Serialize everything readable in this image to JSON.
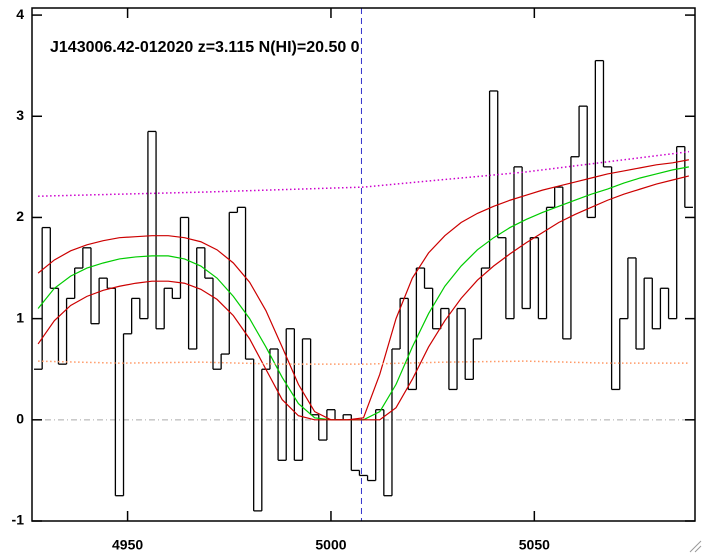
{
  "chart_data": {
    "type": "spectrum",
    "title": "J143006.42-012020 z=3.115 N(HI)=20.50 0",
    "xlim": [
      4926.5,
      5089.5
    ],
    "ylim": [
      -1,
      4.07
    ],
    "xticks": [
      4950,
      5000,
      5050
    ],
    "yticks": [
      -1,
      0,
      1,
      2,
      3,
      4
    ],
    "zero_line": 0,
    "vline": 5007.5,
    "series": [
      {
        "style": "step",
        "color": "#000000",
        "x": [
          4928,
          4930,
          4932,
          4934,
          4936,
          4938,
          4940,
          4942,
          4944,
          4946,
          4948,
          4950,
          4952,
          4954,
          4956,
          4958,
          4960,
          4962,
          4964,
          4966,
          4968,
          4970,
          4972,
          4974,
          4976,
          4978,
          4980,
          4982,
          4984,
          4986,
          4988,
          4990,
          4992,
          4994,
          4996,
          4998,
          5000,
          5002,
          5004,
          5006,
          5008,
          5010,
          5012,
          5014,
          5016,
          5018,
          5020,
          5022,
          5024,
          5026,
          5028,
          5030,
          5032,
          5034,
          5036,
          5038,
          5040,
          5042,
          5044,
          5046,
          5048,
          5050,
          5052,
          5054,
          5056,
          5058,
          5060,
          5062,
          5064,
          5066,
          5068,
          5070,
          5072,
          5074,
          5076,
          5078,
          5080,
          5082,
          5084,
          5086,
          5088
        ],
        "values": [
          0.5,
          1.9,
          1.3,
          0.55,
          1.2,
          1.5,
          1.7,
          0.95,
          1.4,
          1.3,
          -0.75,
          0.85,
          1.2,
          1.0,
          2.85,
          0.9,
          1.3,
          1.2,
          2.0,
          0.7,
          1.7,
          1.4,
          0.5,
          0.65,
          2.05,
          2.1,
          0.6,
          -0.9,
          0.5,
          0.7,
          -0.4,
          0.9,
          -0.4,
          0.8,
          0.05,
          -0.2,
          0.1,
          0,
          0.05,
          -0.5,
          -0.55,
          -0.6,
          0.1,
          -0.75,
          0.7,
          1.2,
          0.3,
          1.5,
          1.3,
          0.9,
          1.1,
          0.3,
          1.1,
          0.4,
          0.8,
          1.5,
          3.25,
          1.8,
          1.0,
          2.5,
          1.1,
          1.8,
          1.0,
          2.1,
          2.3,
          0.8,
          2.6,
          3.1,
          2.0,
          3.55,
          2.5,
          0.3,
          1.0,
          1.6,
          0.7,
          1.4,
          0.9,
          1.3,
          1.0,
          2.7,
          2.1
        ]
      },
      {
        "style": "solid",
        "color": "#00cc00",
        "x": [
          4928,
          4932,
          4936,
          4940,
          4944,
          4948,
          4952,
          4956,
          4960,
          4964,
          4968,
          4972,
          4976,
          4980,
          4984,
          4988,
          4992,
          4996,
          5000,
          5004,
          5008,
          5012,
          5016,
          5020,
          5024,
          5028,
          5032,
          5036,
          5040,
          5044,
          5048,
          5052,
          5056,
          5060,
          5064,
          5068,
          5072,
          5076,
          5080,
          5084,
          5088
        ],
        "values": [
          1.1,
          1.3,
          1.42,
          1.5,
          1.55,
          1.59,
          1.61,
          1.62,
          1.62,
          1.59,
          1.52,
          1.4,
          1.22,
          1.0,
          0.72,
          0.42,
          0.16,
          0.02,
          0,
          0,
          0,
          0.08,
          0.35,
          0.72,
          1.05,
          1.32,
          1.52,
          1.68,
          1.8,
          1.9,
          1.98,
          2.05,
          2.11,
          2.17,
          2.23,
          2.28,
          2.34,
          2.39,
          2.43,
          2.47,
          2.5
        ]
      },
      {
        "style": "solid",
        "color": "#cc0000",
        "x": [
          4928,
          4932,
          4936,
          4940,
          4944,
          4948,
          4952,
          4956,
          4960,
          4964,
          4968,
          4972,
          4976,
          4980,
          4984,
          4988,
          4992,
          4996,
          5000,
          5004,
          5008,
          5012,
          5016,
          5020,
          5024,
          5028,
          5032,
          5036,
          5040,
          5044,
          5048,
          5052,
          5056,
          5060,
          5064,
          5068,
          5072,
          5076,
          5080,
          5084,
          5088
        ],
        "values": [
          1.45,
          1.58,
          1.67,
          1.73,
          1.77,
          1.8,
          1.81,
          1.82,
          1.82,
          1.8,
          1.76,
          1.68,
          1.55,
          1.36,
          1.08,
          0.72,
          0.35,
          0.08,
          0,
          0,
          0.02,
          0.45,
          1.0,
          1.4,
          1.65,
          1.82,
          1.95,
          2.04,
          2.11,
          2.17,
          2.22,
          2.27,
          2.31,
          2.35,
          2.39,
          2.43,
          2.46,
          2.49,
          2.52,
          2.54,
          2.57
        ]
      },
      {
        "style": "solid",
        "color": "#cc0000",
        "x": [
          4928,
          4932,
          4936,
          4940,
          4944,
          4948,
          4952,
          4956,
          4960,
          4964,
          4968,
          4972,
          4976,
          4980,
          4984,
          4988,
          4992,
          4996,
          5000,
          5004,
          5008,
          5012,
          5016,
          5020,
          5024,
          5028,
          5032,
          5036,
          5040,
          5044,
          5048,
          5052,
          5056,
          5060,
          5064,
          5068,
          5072,
          5076,
          5080,
          5084,
          5088
        ],
        "values": [
          0.75,
          0.98,
          1.13,
          1.22,
          1.28,
          1.32,
          1.35,
          1.37,
          1.37,
          1.35,
          1.29,
          1.19,
          1.03,
          0.8,
          0.5,
          0.2,
          0.04,
          0,
          0,
          0,
          0,
          0,
          0.12,
          0.4,
          0.72,
          0.98,
          1.2,
          1.38,
          1.52,
          1.64,
          1.75,
          1.85,
          1.95,
          2.03,
          2.1,
          2.17,
          2.23,
          2.28,
          2.33,
          2.37,
          2.41
        ]
      },
      {
        "style": "dotted",
        "color": "#cc00cc",
        "x": [
          4928,
          4968,
          5008,
          5048,
          5088
        ],
        "values": [
          2.21,
          2.25,
          2.3,
          2.45,
          2.65
        ]
      },
      {
        "style": "dotted",
        "color": "#ff9966",
        "x": [
          4928,
          4948,
          4968,
          4988,
          5008,
          5028,
          5048,
          5068,
          5088
        ],
        "values": [
          0.58,
          0.56,
          0.57,
          0.55,
          0.55,
          0.57,
          0.58,
          0.56,
          0.56
        ]
      }
    ]
  }
}
